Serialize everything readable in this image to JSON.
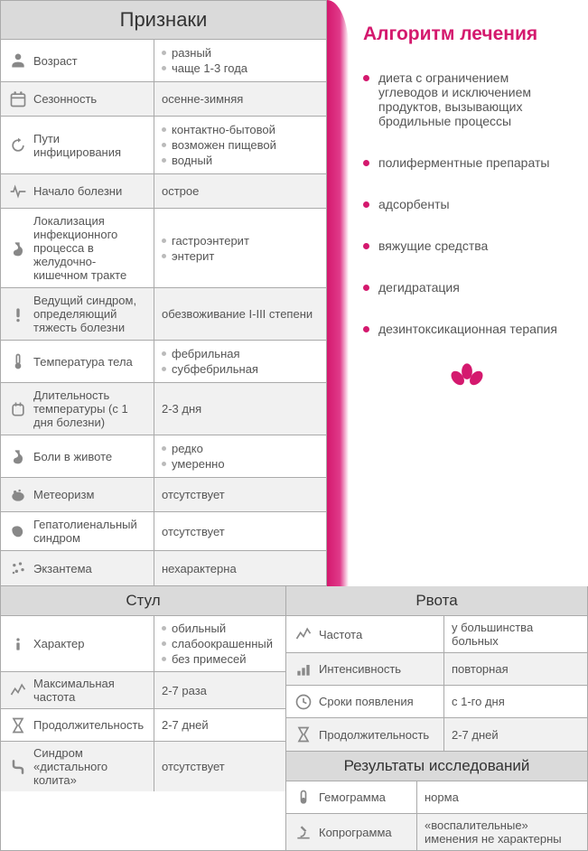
{
  "colors": {
    "accent": "#d4196e",
    "header_bg": "#dadada",
    "border": "#aaa",
    "text": "#555",
    "icon": "#888",
    "bullet_gray": "#bbb",
    "row_alt": "#f1f1f1"
  },
  "signs": {
    "header": "Признаки",
    "rows": [
      {
        "icon": "person",
        "label": "Возраст",
        "values": [
          "разный",
          "чаще 1-3 года"
        ]
      },
      {
        "icon": "calendar",
        "label": "Сезонность",
        "values": [
          "осенне-зимняя"
        ]
      },
      {
        "icon": "refresh",
        "label": "Пути инфицирования",
        "values": [
          "контактно-бытовой",
          "возможен пищевой",
          "водный"
        ]
      },
      {
        "icon": "pulse",
        "label": "Начало болезни",
        "values": [
          "острое"
        ]
      },
      {
        "icon": "stomach",
        "label": "Локализация инфекционного процесса в желудочно-кишечном тракте",
        "values": [
          "гастроэнтерит",
          "энтерит"
        ]
      },
      {
        "icon": "warning",
        "label": "Ведущий синдром, определяющий тяжесть болезни",
        "values": [
          "обезвоживание I-III степени"
        ]
      },
      {
        "icon": "thermometer",
        "label": "Температура тела",
        "values": [
          "фебрильная",
          "субфебрильная"
        ]
      },
      {
        "icon": "duration",
        "label": "Длительность температуры (с 1 дня болезни)",
        "values": [
          "2-3 дня"
        ]
      },
      {
        "icon": "stomach",
        "label": "Боли в животе",
        "values": [
          "редко",
          "умеренно"
        ]
      },
      {
        "icon": "gas",
        "label": "Метеоризм",
        "values": [
          "отсутствует"
        ]
      },
      {
        "icon": "liver",
        "label": "Гепатолиенальный синдром",
        "values": [
          "отсутствует"
        ]
      },
      {
        "icon": "rash",
        "label": "Экзантема",
        "values": [
          "нехарактерна"
        ]
      }
    ]
  },
  "treatment": {
    "title": "Алгоритм лечения",
    "items": [
      "диета с ограничением углеводов и исключением продуктов, вызывающих бродильные процессы",
      "полиферментные препараты",
      "адсорбенты",
      "вяжущие средства",
      "дегидратация",
      "дезинтоксикационная терапия"
    ]
  },
  "stool": {
    "header": "Стул",
    "rows": [
      {
        "icon": "info",
        "label": "Характер",
        "values": [
          "обильный",
          "слабоокрашенный",
          "без примесей"
        ]
      },
      {
        "icon": "chart",
        "label": "Максимальная частота",
        "values": [
          "2-7 раза"
        ]
      },
      {
        "icon": "hourglass",
        "label": "Продолжительность",
        "values": [
          "2-7 дней"
        ]
      },
      {
        "icon": "colitis",
        "label": "Синдром «дистального колита»",
        "values": [
          "отсутствует"
        ]
      }
    ]
  },
  "vomit": {
    "header": "Рвота",
    "rows": [
      {
        "icon": "chart",
        "label": "Частота",
        "values": [
          "у большинства больных"
        ]
      },
      {
        "icon": "bars",
        "label": "Интенсивность",
        "values": [
          "повторная"
        ]
      },
      {
        "icon": "clock",
        "label": "Сроки появления",
        "values": [
          "с 1-го дня"
        ]
      },
      {
        "icon": "hourglass",
        "label": "Продолжительность",
        "values": [
          "2-7 дней"
        ]
      }
    ]
  },
  "research": {
    "header": "Результаты исследований",
    "rows": [
      {
        "icon": "tube",
        "label": "Гемограмма",
        "values": [
          "норма"
        ]
      },
      {
        "icon": "microscope",
        "label": "Копрограмма",
        "values": [
          "«воспалительные» именения не характерны"
        ]
      }
    ]
  }
}
